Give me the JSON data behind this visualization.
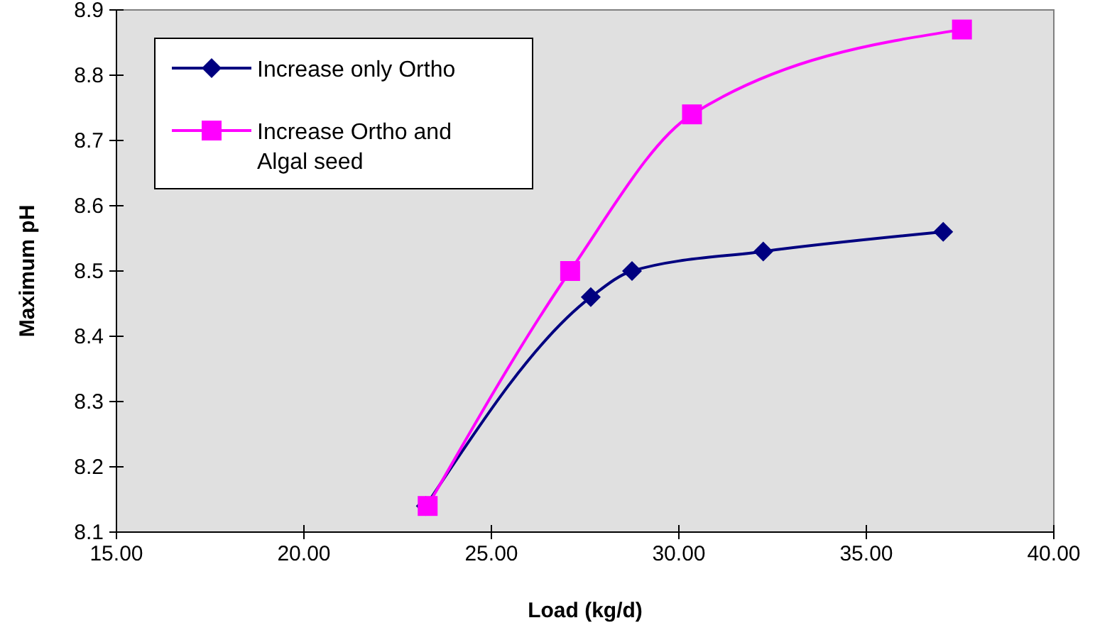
{
  "chart_data": {
    "type": "line",
    "xlabel": "Load (kg/d)",
    "ylabel": "Maximum pH",
    "xlim": [
      15,
      40
    ],
    "xticks": [
      {
        "value": 15,
        "label": "15.00"
      },
      {
        "value": 20,
        "label": "20.00"
      },
      {
        "value": 25,
        "label": "25.00"
      },
      {
        "value": 30,
        "label": "30.00"
      },
      {
        "value": 35,
        "label": "35.00"
      },
      {
        "value": 40,
        "label": "40.00"
      }
    ],
    "ylim": [
      8.1,
      8.9
    ],
    "yticks": [
      8.1,
      8.2,
      8.3,
      8.4,
      8.5,
      8.6,
      8.7,
      8.8,
      8.9
    ],
    "grid": false,
    "legend": "top left",
    "line_style": "solid",
    "series": [
      {
        "name": "Increase only Ortho",
        "color": "#000080",
        "marker": "diamond",
        "x": [
          23.25,
          27.65,
          28.75,
          32.25,
          37.05
        ],
        "values": [
          8.14,
          8.46,
          8.5,
          8.53,
          8.56
        ]
      },
      {
        "name": "Increase Ortho and Algal seed",
        "color": "#ff00ff",
        "marker": "square",
        "x": [
          23.3,
          27.1,
          30.35,
          37.55
        ],
        "values": [
          8.14,
          8.5,
          8.74,
          8.87
        ]
      }
    ]
  }
}
